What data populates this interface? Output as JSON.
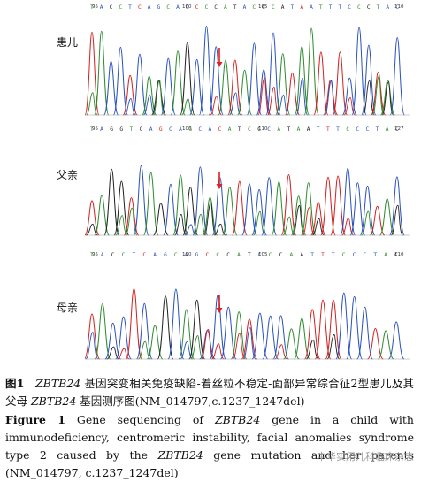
{
  "panels": [
    {
      "label": "患儿",
      "seq": "TACCTCAGCAGCCCATACCCATAATTTCCCTAC",
      "positions": [
        "95",
        "100",
        "105",
        "110"
      ],
      "colors": "gbcgbabbgbbagcgcbgcgcbabgbbbgcgbb"
    },
    {
      "label": "父亲",
      "seq": "TAGGTCAGCAGCACATCCCATAATTTCCCTAC",
      "positions": [
        "95",
        "100",
        "110",
        "127"
      ],
      "colors": "gbccgcbabbgbbagcgcbgcgcbabgbbbgc"
    },
    {
      "label": "母亲",
      "seq": "TACCTCAGCAGCCCATCCCAATTTCCCTAC",
      "positions": [
        "95",
        "100",
        "105",
        "110"
      ],
      "colors": "gbcgbabbgbbagcgcbgcgcbabgbbbgc"
    }
  ],
  "colors": {
    "A": "#2e8b2e",
    "C": "#2a52be",
    "G": "#222222",
    "T": "#d42020",
    "arrow": "#e02020"
  },
  "caption": {
    "cn_label": "图1",
    "cn_gene": "ZBTB24",
    "cn_text_1": " 基因突变相关免疫缺陷-着丝粒不稳定-面部异常综合征2型患儿及其父母 ",
    "cn_gene_2": "ZBTB24",
    "cn_text_2": " 基因测序图(NM_014797,c.1237_1247del)",
    "en_label": "Figure 1",
    "en_text_1": "   Gene sequencing of ",
    "en_gene": "ZBTB24",
    "en_text_2": " gene in a child with immunodeficiency, centromeric instability, facial anomalies syndrome type 2 caused by the ",
    "en_gene_2": "ZBTB24",
    "en_text_3": " gene mutation and her parents (NM_014797, c.1237_1247del)"
  },
  "watermark": "中华实用儿科临床杂志"
}
